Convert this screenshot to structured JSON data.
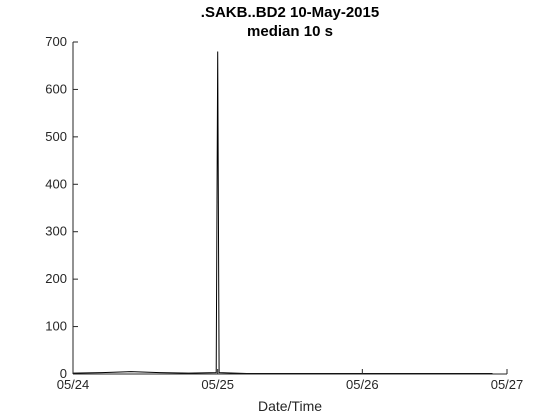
{
  "chart_data": {
    "type": "line",
    "title": ".SAKB..BD2 10-May-2015",
    "subtitle": "median 10 s",
    "xlabel": "Date/Time",
    "ylabel": "",
    "x_ticks": [
      "05/24",
      "05/25",
      "05/26",
      "05/27"
    ],
    "xlim": [
      "05/24",
      "05/27"
    ],
    "ylim": [
      0,
      700
    ],
    "y_ticks": [
      0,
      100,
      200,
      300,
      400,
      500,
      600,
      700
    ],
    "grid": false,
    "legend": "none",
    "series": [
      {
        "color": "#000000",
        "points": [
          {
            "x_days": 0.0,
            "y": 2
          },
          {
            "x_days": 0.2,
            "y": 3
          },
          {
            "x_days": 0.4,
            "y": 5
          },
          {
            "x_days": 0.6,
            "y": 3
          },
          {
            "x_days": 0.8,
            "y": 2
          },
          {
            "x_days": 0.99,
            "y": 3
          },
          {
            "x_days": 1.0,
            "y": 680
          },
          {
            "x_days": 1.01,
            "y": 3
          },
          {
            "x_days": 1.2,
            "y": 1
          },
          {
            "x_days": 1.5,
            "y": 1
          },
          {
            "x_days": 2.0,
            "y": 1
          },
          {
            "x_days": 2.5,
            "y": 1
          },
          {
            "x_days": 2.9,
            "y": 1
          }
        ]
      }
    ]
  }
}
